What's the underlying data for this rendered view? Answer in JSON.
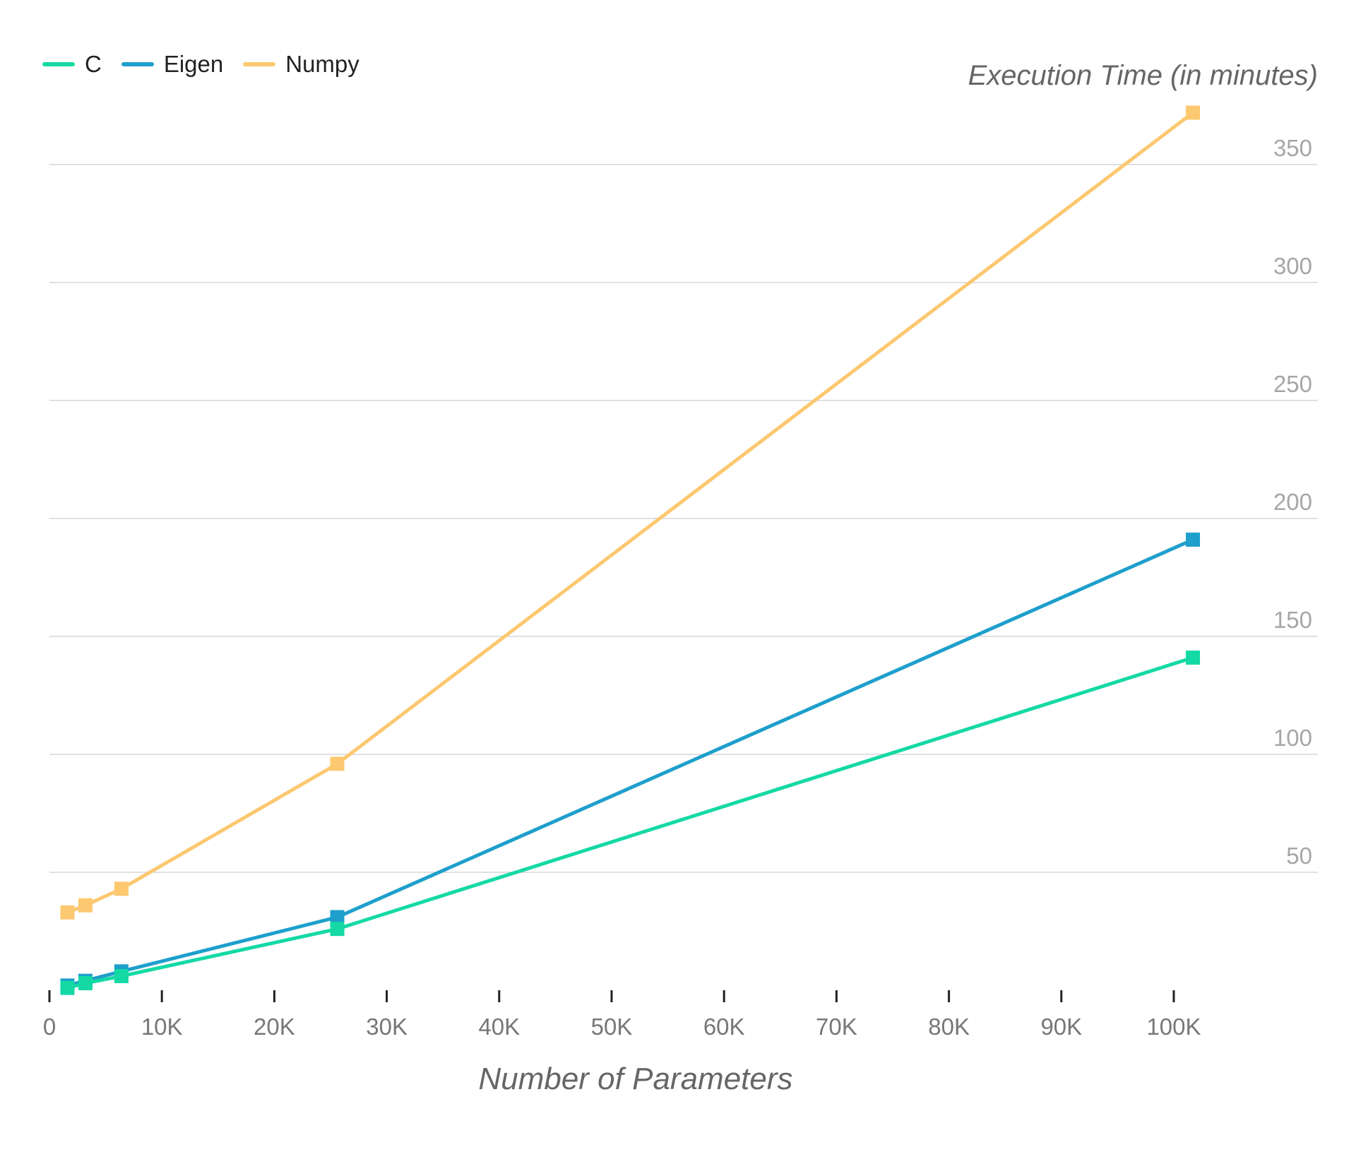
{
  "chart_data": {
    "type": "line",
    "title": "",
    "xlabel": "Number of Parameters",
    "ylabel": "Execution Time (in minutes)",
    "xlim": [
      0,
      110000
    ],
    "ylim": [
      0,
      375
    ],
    "x_ticks": [
      0,
      10000,
      20000,
      30000,
      40000,
      50000,
      60000,
      70000,
      80000,
      90000,
      100000
    ],
    "x_tick_labels": [
      "0",
      "10K",
      "20K",
      "30K",
      "40K",
      "50K",
      "60K",
      "70K",
      "80K",
      "90K",
      "100K"
    ],
    "y_ticks": [
      50,
      100,
      150,
      200,
      250,
      300,
      350
    ],
    "y_tick_labels": [
      "50",
      "100",
      "150",
      "200",
      "250",
      "300",
      "350"
    ],
    "grid": true,
    "legend_position": "top-left",
    "series": [
      {
        "name": "C",
        "color": "#14d9a5",
        "points": [
          [
            1600,
            1
          ],
          [
            3200,
            3
          ],
          [
            6400,
            6
          ],
          [
            25600,
            26
          ],
          [
            101700,
            141
          ]
        ]
      },
      {
        "name": "Eigen",
        "color": "#1e9fcc",
        "points": [
          [
            1600,
            2
          ],
          [
            3200,
            4
          ],
          [
            6400,
            8
          ],
          [
            25600,
            31
          ],
          [
            101700,
            191
          ]
        ]
      },
      {
        "name": "Numpy",
        "color": "#fcc870",
        "points": [
          [
            1600,
            33
          ],
          [
            3200,
            36
          ],
          [
            6400,
            43
          ],
          [
            25600,
            96
          ],
          [
            101700,
            372
          ]
        ]
      }
    ]
  }
}
